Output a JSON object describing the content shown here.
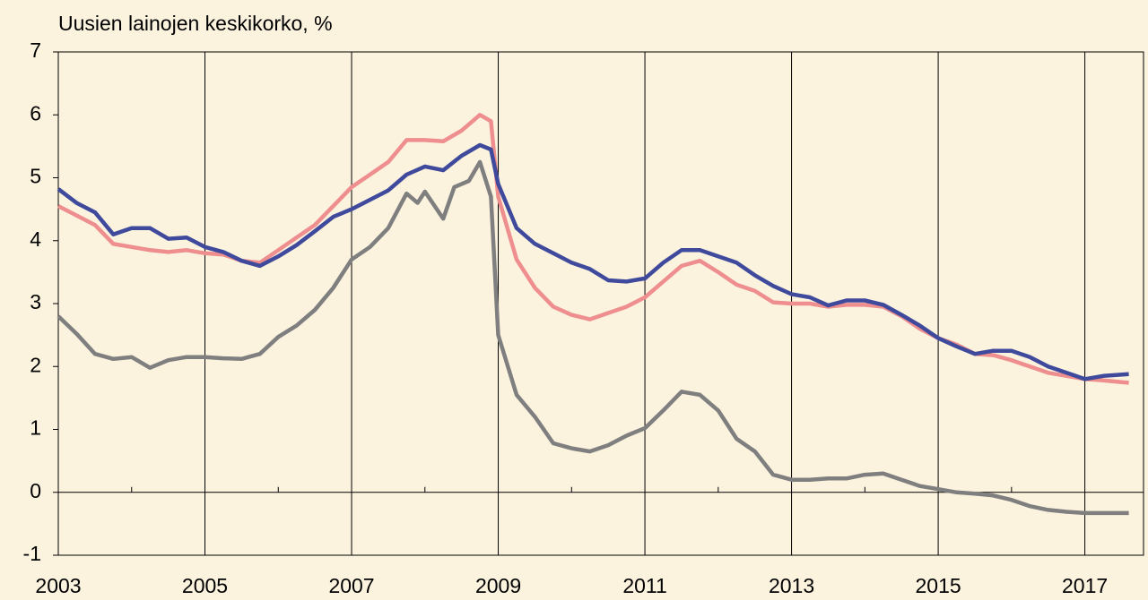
{
  "chart_data": {
    "type": "line",
    "title": "Uusien lainojen keskikorko, %",
    "xlim": [
      2003,
      2017.8
    ],
    "xticks": [
      2003,
      2005,
      2007,
      2009,
      2011,
      2013,
      2015,
      2017
    ],
    "xminorticks": [
      2004,
      2006,
      2008,
      2010,
      2012,
      2014,
      2016
    ],
    "ylim": [
      -1,
      7
    ],
    "yticks": [
      -1,
      0,
      1,
      2,
      3,
      4,
      5,
      6,
      7
    ],
    "grid": "x",
    "series": [
      {
        "color": "#3f4a9c",
        "x": [
          2003,
          2003.25,
          2003.5,
          2003.75,
          2004,
          2004.25,
          2004.5,
          2004.75,
          2005,
          2005.25,
          2005.5,
          2005.75,
          2006,
          2006.25,
          2006.5,
          2006.75,
          2007,
          2007.25,
          2007.5,
          2007.75,
          2008,
          2008.25,
          2008.5,
          2008.75,
          2008.9,
          2009,
          2009.25,
          2009.5,
          2009.75,
          2010,
          2010.25,
          2010.5,
          2010.75,
          2011,
          2011.25,
          2011.5,
          2011.75,
          2012,
          2012.25,
          2012.5,
          2012.75,
          2013,
          2013.25,
          2013.5,
          2013.75,
          2014,
          2014.25,
          2014.5,
          2014.75,
          2015,
          2015.25,
          2015.5,
          2015.75,
          2016,
          2016.25,
          2016.5,
          2016.75,
          2017,
          2017.25,
          2017.6
        ],
        "values": [
          4.82,
          4.6,
          4.45,
          4.1,
          4.2,
          4.2,
          4.03,
          4.05,
          3.9,
          3.82,
          3.68,
          3.6,
          3.75,
          3.93,
          4.15,
          4.38,
          4.5,
          4.65,
          4.8,
          5.05,
          5.18,
          5.12,
          5.35,
          5.52,
          5.45,
          4.9,
          4.2,
          3.95,
          3.8,
          3.65,
          3.55,
          3.37,
          3.35,
          3.4,
          3.65,
          3.85,
          3.85,
          3.75,
          3.65,
          3.45,
          3.28,
          3.15,
          3.1,
          2.97,
          3.05,
          3.05,
          2.98,
          2.82,
          2.65,
          2.45,
          2.32,
          2.2,
          2.25,
          2.25,
          2.15,
          2.0,
          1.9,
          1.8,
          1.85,
          1.88
        ]
      },
      {
        "color": "#ee8e8e",
        "x": [
          2003,
          2003.25,
          2003.5,
          2003.75,
          2004,
          2004.25,
          2004.5,
          2004.75,
          2005,
          2005.25,
          2005.5,
          2005.75,
          2006,
          2006.25,
          2006.5,
          2006.75,
          2007,
          2007.25,
          2007.5,
          2007.75,
          2008,
          2008.25,
          2008.5,
          2008.75,
          2008.9,
          2009,
          2009.25,
          2009.5,
          2009.75,
          2010,
          2010.25,
          2010.5,
          2010.75,
          2011,
          2011.25,
          2011.5,
          2011.75,
          2012,
          2012.25,
          2012.5,
          2012.75,
          2013,
          2013.25,
          2013.5,
          2013.75,
          2014,
          2014.25,
          2014.5,
          2014.75,
          2015,
          2015.25,
          2015.5,
          2015.75,
          2016,
          2016.25,
          2016.5,
          2016.75,
          2017,
          2017.25,
          2017.6
        ],
        "values": [
          4.55,
          4.4,
          4.25,
          3.95,
          3.9,
          3.85,
          3.82,
          3.85,
          3.8,
          3.78,
          3.68,
          3.65,
          3.85,
          4.05,
          4.25,
          4.55,
          4.85,
          5.05,
          5.25,
          5.6,
          5.6,
          5.58,
          5.75,
          6.0,
          5.9,
          4.7,
          3.7,
          3.25,
          2.95,
          2.82,
          2.75,
          2.85,
          2.95,
          3.1,
          3.35,
          3.6,
          3.68,
          3.5,
          3.3,
          3.2,
          3.02,
          3.0,
          3.0,
          2.95,
          2.98,
          2.98,
          2.95,
          2.8,
          2.6,
          2.45,
          2.35,
          2.2,
          2.18,
          2.1,
          2.0,
          1.9,
          1.85,
          1.8,
          1.78,
          1.74
        ]
      },
      {
        "color": "#7f7f7f",
        "x": [
          2003,
          2003.25,
          2003.5,
          2003.75,
          2004,
          2004.25,
          2004.5,
          2004.75,
          2005,
          2005.25,
          2005.5,
          2005.75,
          2006,
          2006.25,
          2006.5,
          2006.75,
          2007,
          2007.25,
          2007.5,
          2007.75,
          2007.9,
          2008,
          2008.25,
          2008.4,
          2008.6,
          2008.75,
          2008.9,
          2009,
          2009.25,
          2009.5,
          2009.75,
          2010,
          2010.25,
          2010.5,
          2010.75,
          2011,
          2011.25,
          2011.5,
          2011.75,
          2012,
          2012.25,
          2012.5,
          2012.75,
          2013,
          2013.25,
          2013.5,
          2013.75,
          2014,
          2014.25,
          2014.5,
          2014.75,
          2015,
          2015.25,
          2015.5,
          2015.75,
          2016,
          2016.25,
          2016.5,
          2016.75,
          2017,
          2017.25,
          2017.6
        ],
        "values": [
          2.8,
          2.52,
          2.2,
          2.12,
          2.15,
          1.98,
          2.1,
          2.15,
          2.15,
          2.13,
          2.12,
          2.2,
          2.47,
          2.65,
          2.9,
          3.25,
          3.7,
          3.9,
          4.2,
          4.75,
          4.6,
          4.78,
          4.35,
          4.85,
          4.95,
          5.25,
          4.7,
          2.5,
          1.55,
          1.2,
          0.78,
          0.7,
          0.65,
          0.75,
          0.9,
          1.02,
          1.3,
          1.6,
          1.55,
          1.3,
          0.85,
          0.65,
          0.28,
          0.2,
          0.2,
          0.22,
          0.22,
          0.28,
          0.3,
          0.2,
          0.1,
          0.05,
          0.0,
          -0.02,
          -0.05,
          -0.12,
          -0.22,
          -0.28,
          -0.31,
          -0.33,
          -0.33,
          -0.33
        ]
      }
    ]
  }
}
